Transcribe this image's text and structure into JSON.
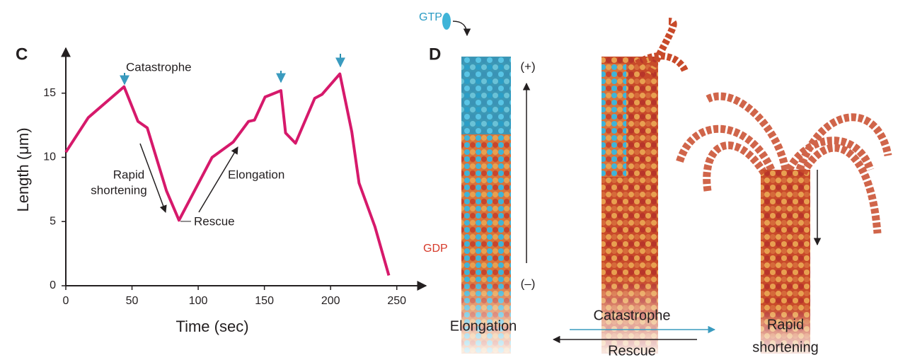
{
  "chart_data": {
    "type": "line",
    "panel_label": "C",
    "xlabel": "Time (sec)",
    "ylabel": "Length (μm)",
    "x": [
      0,
      17,
      44,
      54.5,
      61.5,
      76,
      85.5,
      110.5,
      126.5,
      138,
      142.5,
      150.5,
      162.5,
      166,
      173.5,
      188,
      193.5,
      207,
      216,
      221.5,
      233.5,
      244
    ],
    "values": [
      10.4,
      13.1,
      15.5,
      12.8,
      12.3,
      7.4,
      5.1,
      10,
      11.2,
      12.8,
      12.9,
      14.7,
      15.2,
      11.9,
      11.1,
      14.6,
      14.9,
      16.5,
      12,
      8,
      4.6,
      0.8
    ],
    "color": "#d6196b",
    "xlim": [
      0,
      271
    ],
    "ylim": [
      0,
      18.4
    ],
    "xticks": [
      0,
      50,
      100,
      150,
      200,
      250
    ],
    "yticks": [
      0,
      5,
      10,
      15
    ],
    "annotations": {
      "catastrophe": "Catastrophe",
      "rapid": [
        "Rapid",
        "shortening"
      ],
      "elongation": "Elongation",
      "rescue": "Rescue"
    }
  },
  "diagram": {
    "panel_label": "D",
    "gtp": "GTP",
    "gdp": "GDP",
    "plus_end": "(+)",
    "minus_end": "(–)",
    "elongation": "Elongation",
    "catastrophe": "Catastrophe",
    "rescue": "Rescue",
    "rapid_shortening": [
      "Rapid",
      "shortening"
    ]
  }
}
